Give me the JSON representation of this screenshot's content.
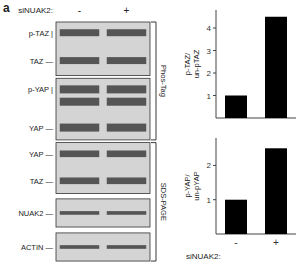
{
  "chart_data": [
    {
      "type": "bar",
      "categories": [
        null,
        null
      ],
      "values": [
        1,
        4.5
      ],
      "color": "#000000",
      "ylim": [
        0,
        4.8
      ],
      "yticks": [
        1,
        2,
        3,
        4
      ],
      "y_label": "p-TAZ/\nun-pTAZ"
    },
    {
      "type": "bar",
      "categories": [
        "-",
        "+"
      ],
      "values": [
        1,
        2.5
      ],
      "color": "#000000",
      "ylim": [
        0,
        2.8
      ],
      "yticks": [
        1,
        2
      ],
      "y_label": "p-YAP/\nun-pYAP",
      "x_label": "siNUAK2:"
    },
    {
      "type": "blot",
      "annotations": [
        "a",
        "siNUAK2:",
        "-",
        "+",
        "p-TAZ |",
        "TAZ —",
        "p-YAP |",
        "YAP —",
        "YAP —",
        "TAZ —",
        "NUAK2 —",
        "ACTIN —",
        "Phos-Tag",
        "SDS-PAGE"
      ]
    }
  ]
}
